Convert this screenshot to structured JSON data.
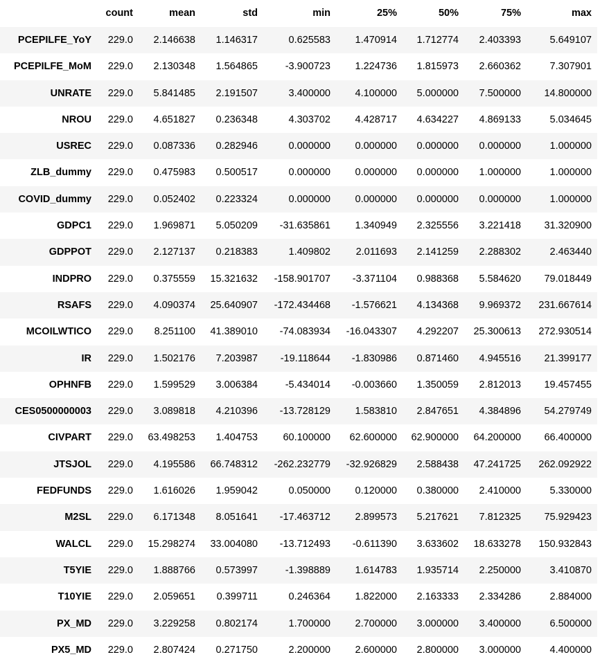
{
  "table": {
    "columns": [
      "count",
      "mean",
      "std",
      "min",
      "25%",
      "50%",
      "75%",
      "max"
    ],
    "rows": [
      {
        "label": "PCEPILFE_YoY",
        "values": [
          "229.0",
          "2.146638",
          "1.146317",
          "0.625583",
          "1.470914",
          "1.712774",
          "2.403393",
          "5.649107"
        ]
      },
      {
        "label": "PCEPILFE_MoM",
        "values": [
          "229.0",
          "2.130348",
          "1.564865",
          "-3.900723",
          "1.224736",
          "1.815973",
          "2.660362",
          "7.307901"
        ]
      },
      {
        "label": "UNRATE",
        "values": [
          "229.0",
          "5.841485",
          "2.191507",
          "3.400000",
          "4.100000",
          "5.000000",
          "7.500000",
          "14.800000"
        ]
      },
      {
        "label": "NROU",
        "values": [
          "229.0",
          "4.651827",
          "0.236348",
          "4.303702",
          "4.428717",
          "4.634227",
          "4.869133",
          "5.034645"
        ]
      },
      {
        "label": "USREC",
        "values": [
          "229.0",
          "0.087336",
          "0.282946",
          "0.000000",
          "0.000000",
          "0.000000",
          "0.000000",
          "1.000000"
        ]
      },
      {
        "label": "ZLB_dummy",
        "values": [
          "229.0",
          "0.475983",
          "0.500517",
          "0.000000",
          "0.000000",
          "0.000000",
          "1.000000",
          "1.000000"
        ]
      },
      {
        "label": "COVID_dummy",
        "values": [
          "229.0",
          "0.052402",
          "0.223324",
          "0.000000",
          "0.000000",
          "0.000000",
          "0.000000",
          "1.000000"
        ]
      },
      {
        "label": "GDPC1",
        "values": [
          "229.0",
          "1.969871",
          "5.050209",
          "-31.635861",
          "1.340949",
          "2.325556",
          "3.221418",
          "31.320900"
        ]
      },
      {
        "label": "GDPPOT",
        "values": [
          "229.0",
          "2.127137",
          "0.218383",
          "1.409802",
          "2.011693",
          "2.141259",
          "2.288302",
          "2.463440"
        ]
      },
      {
        "label": "INDPRO",
        "values": [
          "229.0",
          "0.375559",
          "15.321632",
          "-158.901707",
          "-3.371104",
          "0.988368",
          "5.584620",
          "79.018449"
        ]
      },
      {
        "label": "RSAFS",
        "values": [
          "229.0",
          "4.090374",
          "25.640907",
          "-172.434468",
          "-1.576621",
          "4.134368",
          "9.969372",
          "231.667614"
        ]
      },
      {
        "label": "MCOILWTICO",
        "values": [
          "229.0",
          "8.251100",
          "41.389010",
          "-74.083934",
          "-16.043307",
          "4.292207",
          "25.300613",
          "272.930514"
        ]
      },
      {
        "label": "IR",
        "values": [
          "229.0",
          "1.502176",
          "7.203987",
          "-19.118644",
          "-1.830986",
          "0.871460",
          "4.945516",
          "21.399177"
        ]
      },
      {
        "label": "OPHNFB",
        "values": [
          "229.0",
          "1.599529",
          "3.006384",
          "-5.434014",
          "-0.003660",
          "1.350059",
          "2.812013",
          "19.457455"
        ]
      },
      {
        "label": "CES0500000003",
        "values": [
          "229.0",
          "3.089818",
          "4.210396",
          "-13.728129",
          "1.583810",
          "2.847651",
          "4.384896",
          "54.279749"
        ]
      },
      {
        "label": "CIVPART",
        "values": [
          "229.0",
          "63.498253",
          "1.404753",
          "60.100000",
          "62.600000",
          "62.900000",
          "64.200000",
          "66.400000"
        ]
      },
      {
        "label": "JTSJOL",
        "values": [
          "229.0",
          "4.195586",
          "66.748312",
          "-262.232779",
          "-32.926829",
          "2.588438",
          "47.241725",
          "262.092922"
        ]
      },
      {
        "label": "FEDFUNDS",
        "values": [
          "229.0",
          "1.616026",
          "1.959042",
          "0.050000",
          "0.120000",
          "0.380000",
          "2.410000",
          "5.330000"
        ]
      },
      {
        "label": "M2SL",
        "values": [
          "229.0",
          "6.171348",
          "8.051641",
          "-17.463712",
          "2.899573",
          "5.217621",
          "7.812325",
          "75.929423"
        ]
      },
      {
        "label": "WALCL",
        "values": [
          "229.0",
          "15.298274",
          "33.004080",
          "-13.712493",
          "-0.611390",
          "3.633602",
          "18.633278",
          "150.932843"
        ]
      },
      {
        "label": "T5YIE",
        "values": [
          "229.0",
          "1.888766",
          "0.573997",
          "-1.398889",
          "1.614783",
          "1.935714",
          "2.250000",
          "3.410870"
        ]
      },
      {
        "label": "T10YIE",
        "values": [
          "229.0",
          "2.059651",
          "0.399711",
          "0.246364",
          "1.822000",
          "2.163333",
          "2.334286",
          "2.884000"
        ]
      },
      {
        "label": "PX_MD",
        "values": [
          "229.0",
          "3.229258",
          "0.802174",
          "1.700000",
          "2.700000",
          "3.000000",
          "3.400000",
          "6.500000"
        ]
      },
      {
        "label": "PX5_MD",
        "values": [
          "229.0",
          "2.807424",
          "0.271750",
          "2.200000",
          "2.600000",
          "2.800000",
          "3.000000",
          "4.400000"
        ]
      }
    ]
  }
}
